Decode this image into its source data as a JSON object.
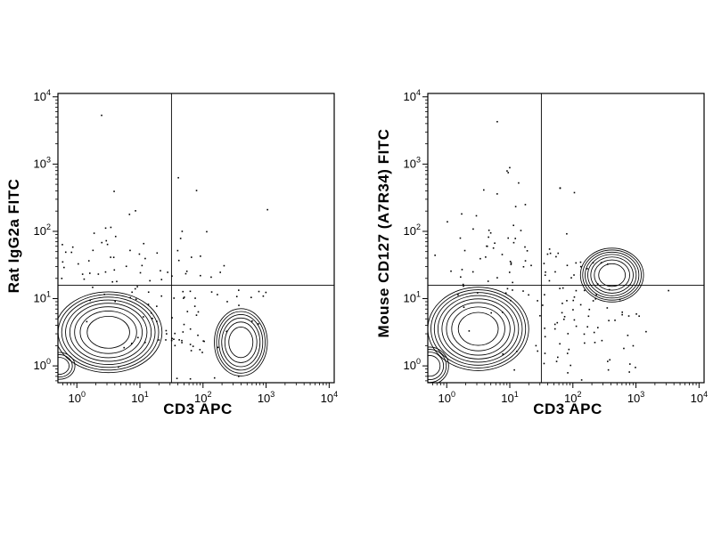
{
  "page": {
    "background": "#ffffff",
    "line_color": "#000000",
    "description_kind": "flow-cytometry-contour-plots"
  },
  "chart_data": [
    {
      "type": "contour",
      "title": "",
      "xlabel": "CD3 APC",
      "ylabel": "Rat IgG2a FITC",
      "x_scale": "log10",
      "y_scale": "log10",
      "x_ticks_exp": [
        0,
        1,
        2,
        3,
        4
      ],
      "y_ticks_exp": [
        0,
        1,
        2,
        3,
        4
      ],
      "xlim_log": [
        -0.3,
        4.08
      ],
      "ylim_log": [
        -0.25,
        4.05
      ],
      "grid": false,
      "legend": "none",
      "quadrant_gate": {
        "x_log": 1.5,
        "y_log": 1.2
      },
      "seed": 7,
      "populations": [
        {
          "name": "unstained-main",
          "cx": 0.5,
          "cy": 0.5,
          "rx": 0.85,
          "ry": 0.6,
          "levels": 8
        },
        {
          "name": "cd3-pos-fitc-neg",
          "cx": 2.6,
          "cy": 0.35,
          "rx": 0.42,
          "ry": 0.5,
          "levels": 6
        },
        {
          "name": "corner-debris",
          "cx": -0.28,
          "cy": 0.0,
          "rx": 0.25,
          "ry": 0.2,
          "levels": 3
        }
      ],
      "scatter": [
        {
          "cx": 0.6,
          "cy": 1.35,
          "sx": 0.55,
          "sy": 0.3,
          "n": 45
        },
        {
          "cx": 1.7,
          "cy": 0.55,
          "sx": 0.5,
          "sy": 0.45,
          "n": 55
        },
        {
          "cx": 0.9,
          "cy": 2.1,
          "sx": 0.6,
          "sy": 0.5,
          "n": 14
        },
        {
          "cx": 2.6,
          "cy": 1.0,
          "sx": 0.35,
          "sy": 0.25,
          "n": 12
        },
        {
          "cx": 1.5,
          "cy": 1.5,
          "sx": 1.3,
          "sy": 0.9,
          "n": 18
        }
      ]
    },
    {
      "type": "contour",
      "title": "",
      "xlabel": "CD3 APC",
      "ylabel": "Mouse CD127 (A7R34) FITC",
      "x_scale": "log10",
      "y_scale": "log10",
      "x_ticks_exp": [
        0,
        1,
        2,
        3,
        4
      ],
      "y_ticks_exp": [
        0,
        1,
        2,
        3,
        4
      ],
      "xlim_log": [
        -0.3,
        4.08
      ],
      "ylim_log": [
        -0.25,
        4.05
      ],
      "grid": false,
      "legend": "none",
      "quadrant_gate": {
        "x_log": 1.5,
        "y_log": 1.2
      },
      "seed": 13,
      "populations": [
        {
          "name": "cd3-neg-main",
          "cx": 0.5,
          "cy": 0.55,
          "rx": 0.8,
          "ry": 0.62,
          "levels": 8
        },
        {
          "name": "cd3-pos-cd127-pos",
          "cx": 2.62,
          "cy": 1.35,
          "rx": 0.5,
          "ry": 0.4,
          "levels": 7
        },
        {
          "name": "corner-debris",
          "cx": -0.27,
          "cy": 0.0,
          "rx": 0.3,
          "ry": 0.28,
          "levels": 4
        }
      ],
      "scatter": [
        {
          "cx": 0.6,
          "cy": 1.5,
          "sx": 0.55,
          "sy": 0.35,
          "n": 40
        },
        {
          "cx": 1.6,
          "cy": 0.8,
          "sx": 0.5,
          "sy": 0.5,
          "n": 50
        },
        {
          "cx": 2.55,
          "cy": 0.45,
          "sx": 0.35,
          "sy": 0.35,
          "n": 25
        },
        {
          "cx": 0.9,
          "cy": 2.3,
          "sx": 0.6,
          "sy": 0.5,
          "n": 14
        },
        {
          "cx": 2.0,
          "cy": 1.3,
          "sx": 0.4,
          "sy": 0.3,
          "n": 18
        },
        {
          "cx": 1.5,
          "cy": 1.8,
          "sx": 1.2,
          "sy": 0.8,
          "n": 15
        }
      ]
    }
  ]
}
